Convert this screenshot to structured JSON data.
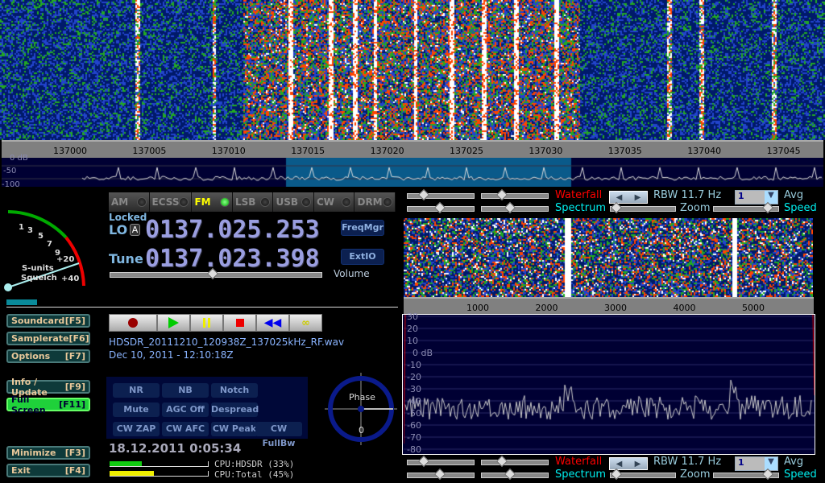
{
  "top_ruler": {
    "ticks": [
      "137000",
      "137005",
      "137010",
      "137015",
      "137020",
      "137025",
      "137030",
      "137035",
      "137040",
      "137045"
    ]
  },
  "top_spectrum": {
    "db_labels": [
      "0 dB",
      "-50",
      "-100"
    ]
  },
  "modes": [
    {
      "label": "AM",
      "active": false
    },
    {
      "label": "ECSS",
      "active": false
    },
    {
      "label": "FM",
      "active": true
    },
    {
      "label": "LSB",
      "active": false
    },
    {
      "label": "USB",
      "active": false
    },
    {
      "label": "CW",
      "active": false
    },
    {
      "label": "DRM",
      "active": false
    }
  ],
  "smeter": {
    "scale": [
      "1",
      "3",
      "5",
      "7",
      "9",
      "+20",
      "+40"
    ],
    "label1": "S-units",
    "label2": "Squelch"
  },
  "lo": {
    "locked": "Locked",
    "label": "LO",
    "a_label": "A",
    "freq": "0137.025.253"
  },
  "tune": {
    "label": "Tune",
    "freq": "0137.023.398"
  },
  "buttons": {
    "freqmgr": "FreqMgr",
    "extio": "ExtIO",
    "volume": "Volume"
  },
  "left_buttons": [
    {
      "label": "Soundcard",
      "key": "[F5]"
    },
    {
      "label": "Samplerate",
      "key": "[F6]"
    },
    {
      "label": "Options",
      "key": "[F7]"
    },
    {
      "label": "Info / Update",
      "key": "[F9]"
    },
    {
      "label": "Full Screen",
      "key": "[F11]",
      "active": true
    },
    {
      "label": "Minimize",
      "key": "[F3]"
    },
    {
      "label": "Exit",
      "key": "[F4]"
    }
  ],
  "recording": {
    "filename": "HDSDR_20111210_120938Z_137025kHz_RF.wav",
    "date": "Dec 10, 2011 - 12:10:18Z"
  },
  "dsp": [
    "NR",
    "NB",
    "Notch",
    "Mute",
    "AGC Off",
    "Despread",
    "CW ZAP",
    "CW AFC",
    "CW Peak",
    "CW FullBw"
  ],
  "phase": {
    "label": "Phase",
    "value": "0"
  },
  "clock": "18.12.2011 0:05:34",
  "cpu": {
    "hdsdr_label": "CPU:HDSDR (33%)",
    "hdsdr_pct": 33,
    "total_label": "CPU:Total (45%)",
    "total_pct": 45
  },
  "af_controls": {
    "waterfall": "Waterfall",
    "spectrum": "Spectrum",
    "rbw": "RBW 11.7 Hz",
    "avg_value": "1",
    "avg": "Avg",
    "zoom": "Zoom",
    "speed": "Speed"
  },
  "af_ruler": {
    "ticks": [
      "1000",
      "2000",
      "3000",
      "4000",
      "5000"
    ]
  },
  "af_spectrum": {
    "db_labels": [
      "30",
      "20",
      "10",
      "0 dB",
      "-10",
      "-20",
      "-30",
      "-40",
      "-50",
      "-60",
      "-70",
      "-80"
    ]
  },
  "colors": {
    "accent_green": "#1fd13a",
    "freq_display": "#9a9ee0",
    "spectrum_bg": "#000033",
    "highlight": "#0a5a8a"
  }
}
